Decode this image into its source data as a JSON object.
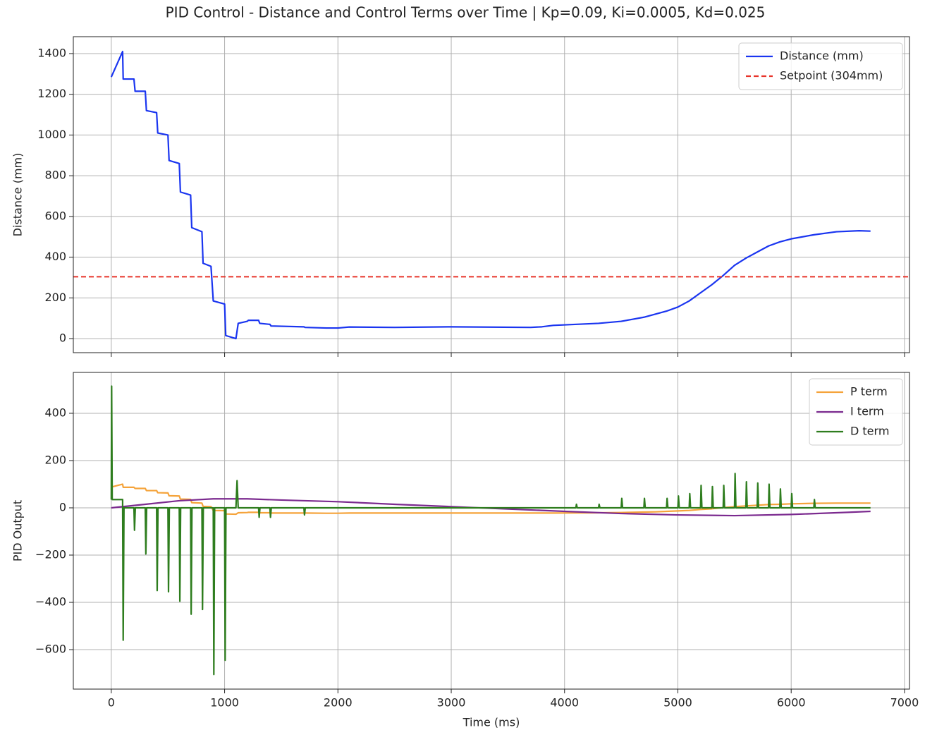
{
  "chart_data": [
    {
      "type": "line",
      "title": "PID Control - Distance and Control Terms over Time | Kp=0.09, Ki=0.0005, Kd=0.025",
      "ylabel": "Distance (mm)",
      "xlim": [
        -335,
        7044
      ],
      "ylim": [
        -69,
        1483
      ],
      "xticks": [
        0,
        1000,
        2000,
        3000,
        4000,
        5000,
        6000,
        7000
      ],
      "yticks": [
        0,
        200,
        400,
        600,
        800,
        1000,
        1200,
        1400
      ],
      "grid": true,
      "legend": "upper right",
      "series": [
        {
          "name": "Distance (mm)",
          "color": "#1a35f0",
          "x": [
            0,
            100,
            105,
            200,
            210,
            300,
            310,
            400,
            410,
            500,
            510,
            600,
            610,
            700,
            710,
            800,
            810,
            880,
            900,
            1000,
            1010,
            1100,
            1120,
            1200,
            1210,
            1300,
            1310,
            1400,
            1410,
            1700,
            1710,
            1900,
            2000,
            2100,
            2500,
            3000,
            3700,
            3800,
            3900,
            4300,
            4500,
            4600,
            4700,
            4800,
            4900,
            5000,
            5100,
            5200,
            5300,
            5400,
            5500,
            5600,
            5700,
            5800,
            5900,
            6000,
            6200,
            6400,
            6600,
            6700
          ],
          "values": [
            1285,
            1410,
            1275,
            1275,
            1215,
            1215,
            1120,
            1110,
            1010,
            1000,
            875,
            860,
            720,
            705,
            545,
            525,
            370,
            355,
            185,
            170,
            15,
            0,
            75,
            85,
            90,
            90,
            75,
            70,
            62,
            58,
            55,
            52,
            52,
            57,
            55,
            58,
            55,
            58,
            65,
            75,
            85,
            95,
            105,
            120,
            135,
            155,
            185,
            225,
            265,
            310,
            360,
            395,
            425,
            455,
            475,
            490,
            510,
            525,
            530,
            528
          ]
        },
        {
          "name": "Setpoint (304mm)",
          "color": "#e8342a",
          "dashed": true,
          "value": 304
        }
      ]
    },
    {
      "type": "line",
      "xlabel": "Time (ms)",
      "ylabel": "PID Output",
      "xlim": [
        -335,
        7044
      ],
      "ylim": [
        -767,
        573
      ],
      "xticks": [
        0,
        1000,
        2000,
        3000,
        4000,
        5000,
        6000,
        7000
      ],
      "yticks": [
        {
          "value": -600,
          "label": "−600"
        },
        {
          "value": -400,
          "label": "−400"
        },
        {
          "value": -200,
          "label": "−200"
        },
        0,
        200,
        400
      ],
      "grid": true,
      "legend": "upper right",
      "series": [
        {
          "name": "P term",
          "color": "#f5a33a",
          "x": [
            0,
            100,
            105,
            200,
            210,
            300,
            310,
            400,
            410,
            500,
            510,
            600,
            610,
            700,
            710,
            800,
            810,
            880,
            900,
            1000,
            1010,
            1100,
            1120,
            1200,
            1210,
            1300,
            1310,
            1400,
            1410,
            1700,
            1710,
            1900,
            2000,
            2100,
            2500,
            3000,
            3700,
            3800,
            3900,
            4300,
            4500,
            4600,
            4700,
            4800,
            4900,
            5000,
            5100,
            5200,
            5300,
            5400,
            5500,
            5600,
            5700,
            5800,
            5900,
            6000,
            6200,
            6400,
            6600,
            6700
          ],
          "values": [
            88,
            100,
            87,
            87,
            82,
            82,
            73,
            73,
            64,
            63,
            51,
            50,
            37,
            36,
            22,
            20,
            6,
            5,
            -11,
            -12,
            -26,
            -27,
            -21,
            -20,
            -19,
            -19,
            -21,
            -21,
            -22,
            -22,
            -22,
            -23,
            -23,
            -22,
            -22,
            -22,
            -22,
            -22,
            -22,
            -21,
            -20,
            -19,
            -18,
            -17,
            -15,
            -13,
            -11,
            -7,
            -4,
            1,
            5,
            8,
            11,
            14,
            15,
            17,
            19,
            20,
            20,
            20
          ]
        },
        {
          "name": "I term",
          "color": "#7b2a8f",
          "x": [
            0,
            300,
            600,
            900,
            1200,
            1500,
            2000,
            2500,
            3000,
            3500,
            4000,
            4500,
            5000,
            5500,
            6000,
            6500,
            6700
          ],
          "values": [
            0,
            15,
            30,
            38,
            38,
            33,
            26,
            15,
            5,
            -5,
            -15,
            -24,
            -30,
            -33,
            -28,
            -19,
            -15
          ]
        },
        {
          "name": "D term",
          "color": "#2e7d1e",
          "x": [
            0,
            3,
            8,
            100,
            105,
            112,
            200,
            205,
            212,
            300,
            305,
            312,
            400,
            405,
            412,
            500,
            505,
            512,
            600,
            605,
            612,
            700,
            705,
            712,
            800,
            805,
            812,
            900,
            905,
            912,
            1000,
            1005,
            1012,
            1100,
            1110,
            1120,
            1300,
            1305,
            1312,
            1400,
            1405,
            1412,
            1700,
            1705,
            1712,
            4100,
            4105,
            4112,
            4300,
            4305,
            4312,
            4500,
            4505,
            4512,
            4700,
            4705,
            4712,
            4900,
            4905,
            4912,
            5000,
            5005,
            5012,
            5100,
            5105,
            5112,
            5200,
            5205,
            5212,
            5300,
            5305,
            5312,
            5400,
            5405,
            5412,
            5500,
            5505,
            5512,
            5600,
            5605,
            5612,
            5700,
            5705,
            5712,
            5800,
            5805,
            5812,
            5900,
            5905,
            5912,
            6000,
            6005,
            6012,
            6200,
            6205,
            6212,
            6700
          ],
          "values": [
            35,
            515,
            35,
            35,
            -560,
            0,
            0,
            -95,
            0,
            0,
            -195,
            0,
            0,
            -350,
            0,
            0,
            -355,
            0,
            0,
            -395,
            0,
            0,
            -450,
            0,
            0,
            -430,
            0,
            0,
            -705,
            0,
            0,
            -645,
            0,
            0,
            115,
            0,
            0,
            -40,
            0,
            0,
            -40,
            0,
            0,
            -30,
            0,
            0,
            15,
            0,
            0,
            15,
            0,
            0,
            40,
            0,
            0,
            40,
            0,
            0,
            40,
            0,
            0,
            50,
            0,
            0,
            60,
            0,
            0,
            95,
            0,
            0,
            90,
            0,
            0,
            95,
            0,
            0,
            145,
            0,
            0,
            110,
            0,
            0,
            105,
            0,
            0,
            100,
            0,
            0,
            80,
            0,
            0,
            60,
            0,
            0,
            35,
            0,
            0
          ]
        }
      ]
    }
  ]
}
